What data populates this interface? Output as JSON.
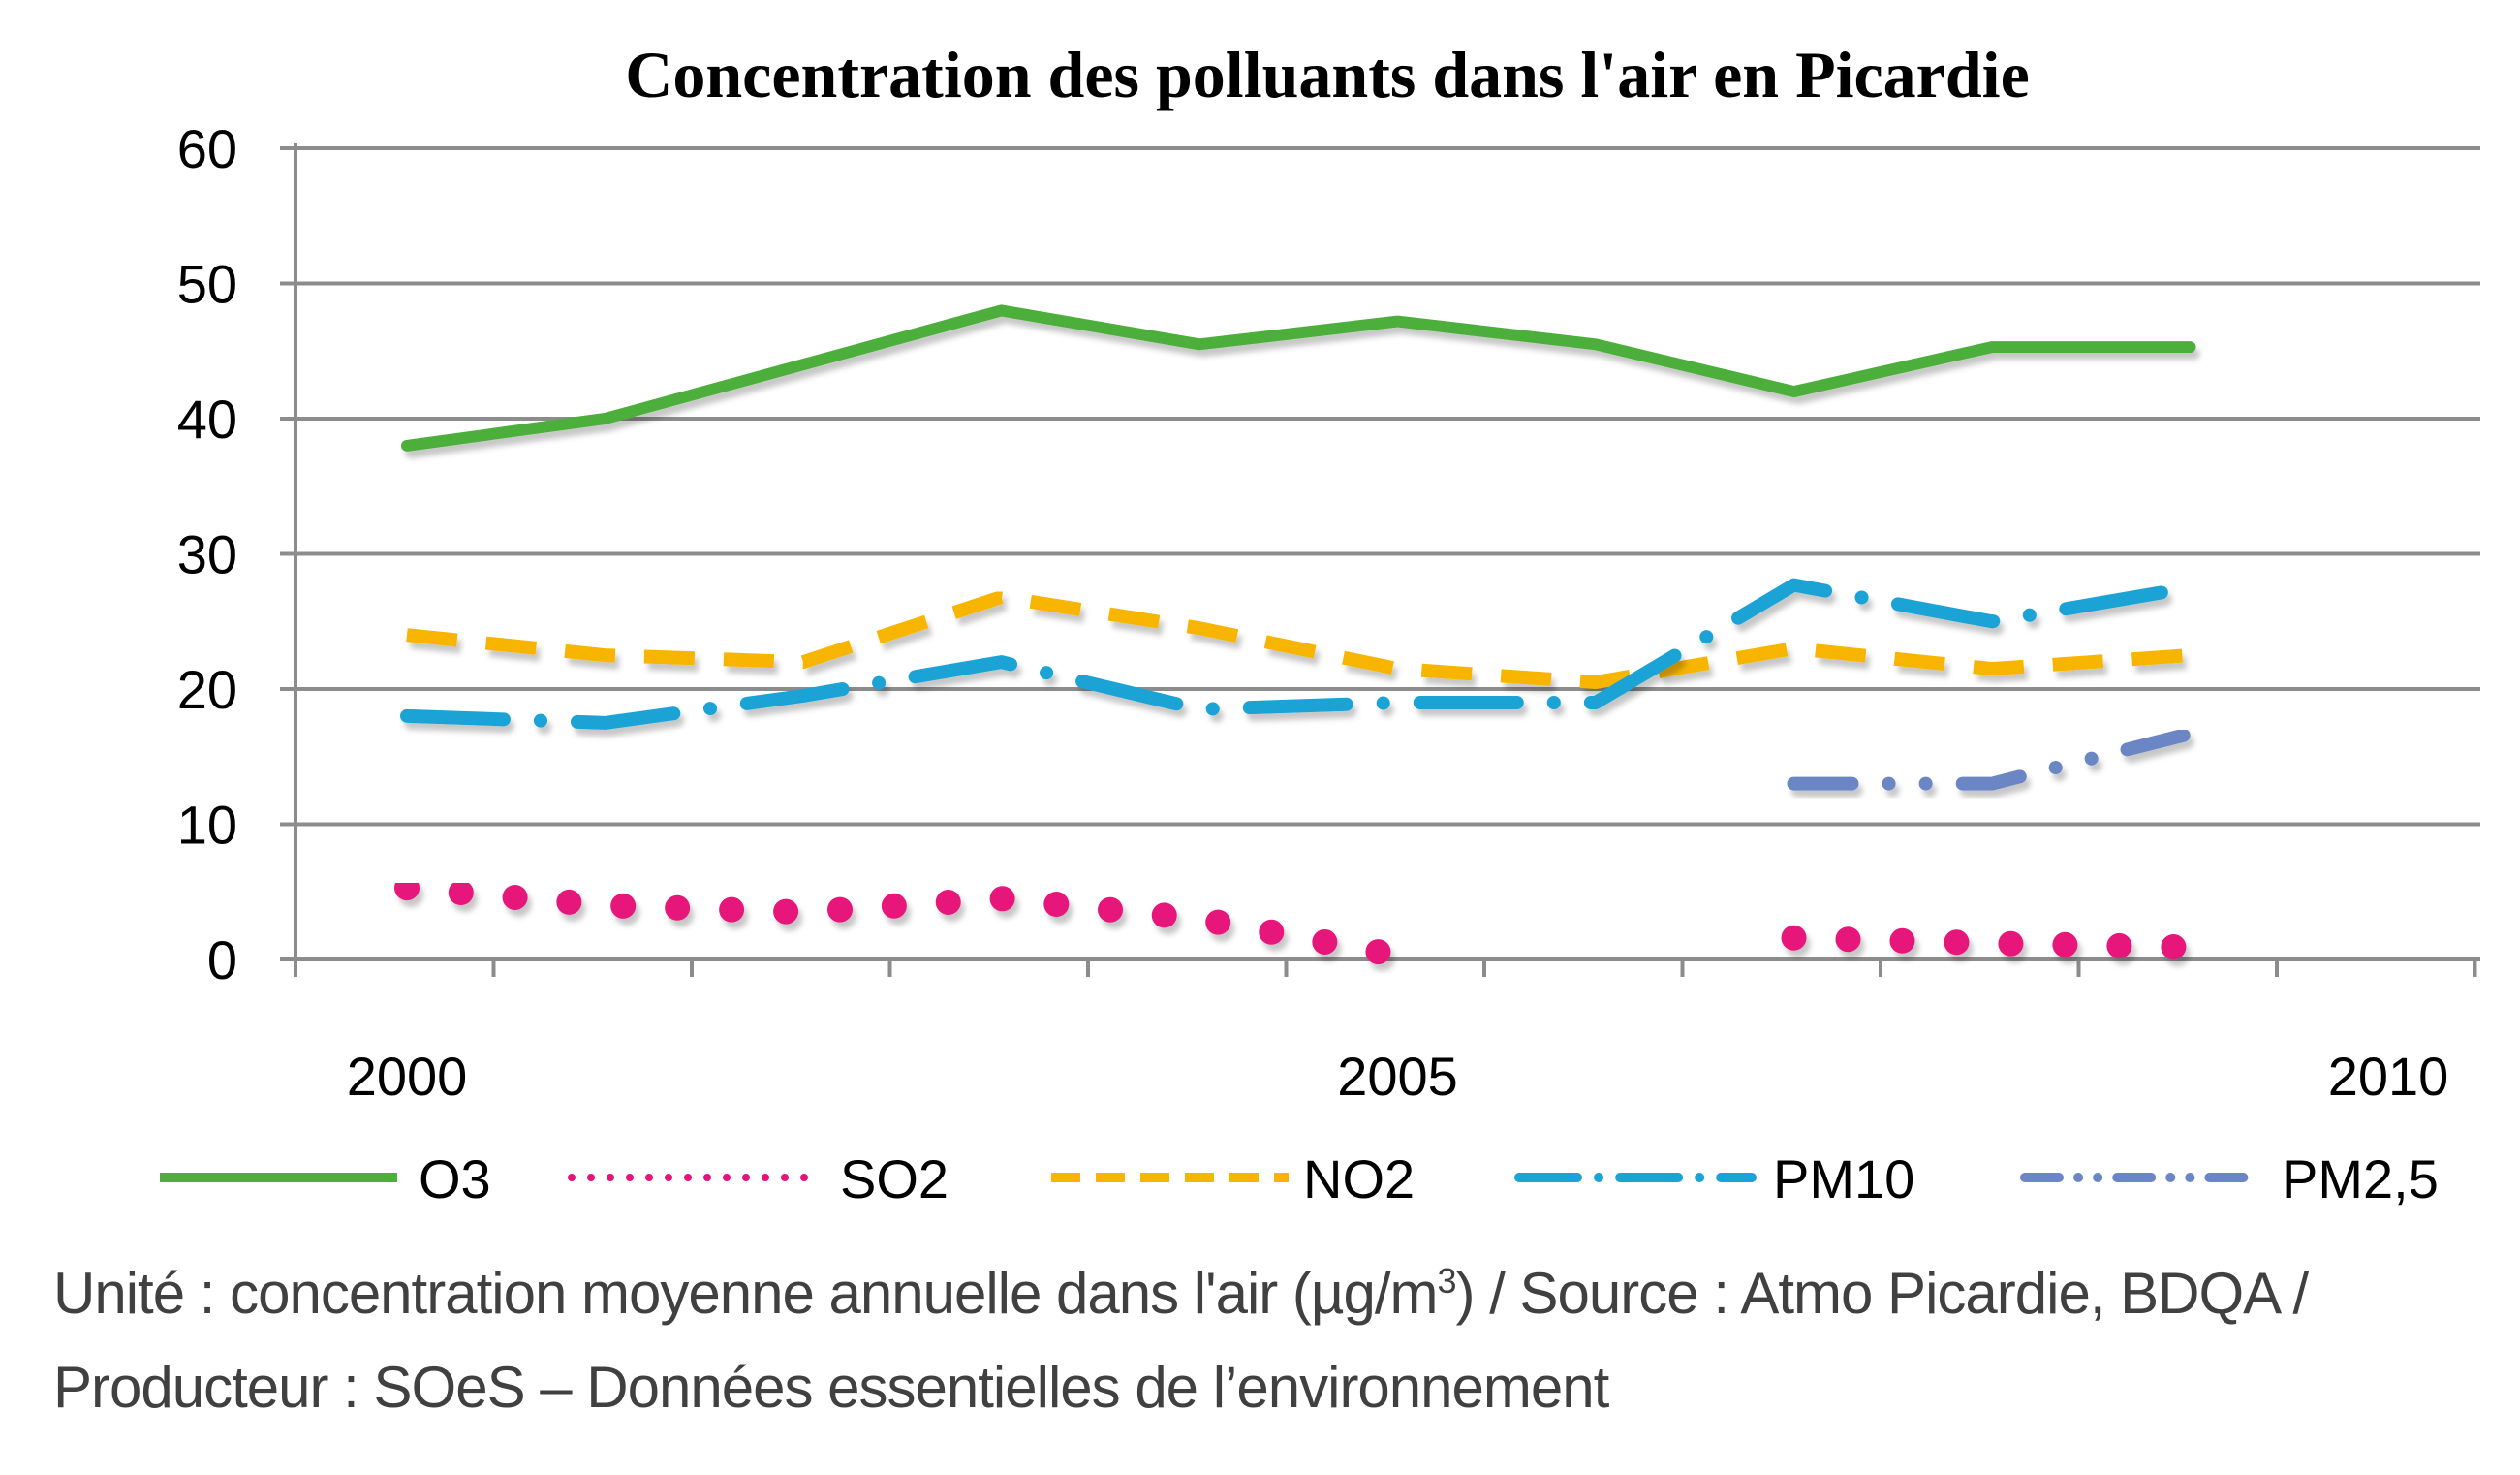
{
  "chart_data": {
    "type": "line",
    "title": "Concentration des polluants dans l'air en Picardie",
    "x_ticks": [
      2000,
      2005,
      2010
    ],
    "xlim": [
      2000,
      2011
    ],
    "ylim": [
      0,
      60
    ],
    "y_ticks": [
      0,
      10,
      20,
      30,
      40,
      50,
      60
    ],
    "grid": true,
    "legend_position": "bottom",
    "series": [
      {
        "name": "O3",
        "style": "solid",
        "color": "#4daf3a",
        "points": [
          [
            2000,
            38
          ],
          [
            2001,
            40
          ],
          [
            2002,
            44
          ],
          [
            2003,
            48
          ],
          [
            2004,
            45.5
          ],
          [
            2005,
            47.2
          ],
          [
            2006,
            45.5
          ],
          [
            2007,
            42
          ],
          [
            2008,
            45.3
          ],
          [
            2009,
            45.3
          ]
        ]
      },
      {
        "name": "SO2",
        "style": "dotted",
        "color": "#e6127a",
        "points": [
          [
            2000,
            5.3
          ],
          [
            2001,
            4
          ],
          [
            2002,
            3.5
          ],
          [
            2003,
            4.5
          ],
          [
            2004,
            3
          ],
          [
            2005,
            0.3
          ],
          [
            2006,
            null
          ],
          [
            2007,
            1.6
          ],
          [
            2008,
            1.2
          ],
          [
            2009,
            0.9
          ]
        ]
      },
      {
        "name": "NO2",
        "style": "dashed",
        "color": "#f7b500",
        "points": [
          [
            2000,
            24
          ],
          [
            2001,
            22.5
          ],
          [
            2002,
            22
          ],
          [
            2003,
            26.8
          ],
          [
            2004,
            24.5
          ],
          [
            2005,
            21.5
          ],
          [
            2006,
            20.5
          ],
          [
            2007,
            23
          ],
          [
            2008,
            21.5
          ],
          [
            2009,
            22.5
          ]
        ]
      },
      {
        "name": "PM10",
        "style": "dashdot",
        "color": "#1aa3d6",
        "points": [
          [
            2000,
            18
          ],
          [
            2001,
            17.5
          ],
          [
            2002,
            19.5
          ],
          [
            2003,
            22
          ],
          [
            2004,
            18.5
          ],
          [
            2005,
            19
          ],
          [
            2006,
            19
          ],
          [
            2007,
            27.7
          ],
          [
            2008,
            25
          ],
          [
            2009,
            27.5
          ]
        ]
      },
      {
        "name": "PM2,5",
        "style": "dashdotdot",
        "color": "#6b86c4",
        "points": [
          [
            2007,
            13
          ],
          [
            2008,
            13
          ],
          [
            2009,
            16.7
          ]
        ]
      }
    ]
  },
  "footer": {
    "line1_before": "Unité : concentration moyenne annuelle dans l'air (µg/m",
    "line1_sup": "3",
    "line1_after": ") / Source : Atmo Picardie, BDQA /",
    "line2": "Producteur : SOeS – Données essentielles de l’environnement"
  }
}
